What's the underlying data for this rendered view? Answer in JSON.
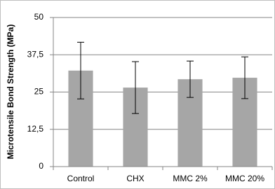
{
  "chart_data": {
    "type": "bar",
    "y_label": "Microtensile Bond Strength (MPa)",
    "categories": [
      "Control",
      "CHX",
      "MMC 2%",
      "MMC 20%"
    ],
    "values": [
      32.2,
      26.5,
      29.3,
      29.8
    ],
    "errors": [
      9.5,
      8.7,
      6.1,
      7
    ],
    "color": "#a6a6a6",
    "ylim": [
      0,
      50
    ],
    "yticks": [
      0,
      {
        "value": 12.5,
        "label": "12,5"
      },
      25,
      {
        "value": 37.5,
        "label": "37,5"
      },
      50
    ],
    "grid": true
  }
}
